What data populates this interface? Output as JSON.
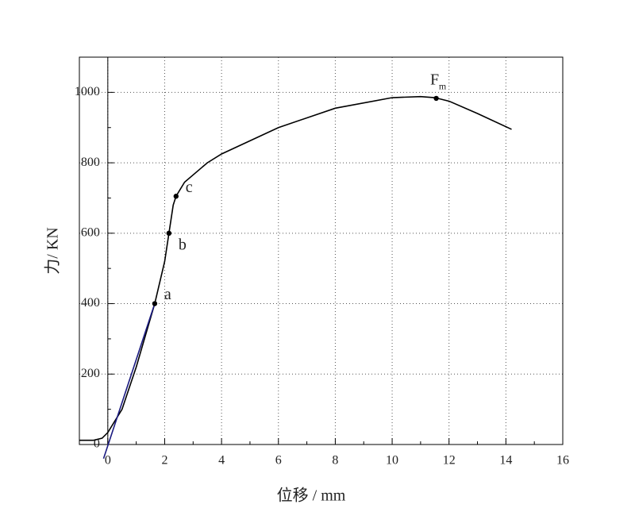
{
  "chart_data": {
    "type": "line",
    "xlabel": "位移 / mm",
    "ylabel": "力/ KN",
    "xlim": [
      -1,
      16
    ],
    "ylim": [
      0,
      1100
    ],
    "xticks": [
      0,
      2,
      4,
      6,
      8,
      10,
      12,
      14,
      16
    ],
    "yticks": [
      0,
      200,
      400,
      600,
      800,
      1000
    ],
    "xminorticks": [
      1,
      3,
      5,
      7,
      9,
      11,
      13,
      15
    ],
    "yminorticks": [
      100,
      300,
      500,
      700,
      900,
      1100
    ],
    "grid": true,
    "series": [
      {
        "color": "#000000",
        "x": [
          -1,
          -0.5,
          -0.2,
          0,
          0.5,
          1,
          1.65,
          2,
          2.15,
          2.3,
          2.4,
          2.7,
          3.5,
          4,
          6,
          8,
          10,
          11,
          11.5,
          12,
          13,
          14.2
        ],
        "values": [
          12,
          12,
          18,
          34,
          100,
          220,
          400,
          520,
          600,
          680,
          705,
          745,
          800,
          825,
          900,
          955,
          985,
          988,
          985,
          975,
          940,
          895
        ]
      },
      {
        "color": "#1a1a80",
        "x": [
          -0.15,
          1.65
        ],
        "values": [
          -40,
          400
        ]
      }
    ],
    "points": [
      {
        "label": "a",
        "x": 1.65,
        "y": 400
      },
      {
        "label": "b",
        "x": 2.15,
        "y": 600
      },
      {
        "label": "c",
        "x": 2.4,
        "y": 705
      },
      {
        "label": "F",
        "sub": "m",
        "x": 11.55,
        "y": 983
      }
    ]
  }
}
